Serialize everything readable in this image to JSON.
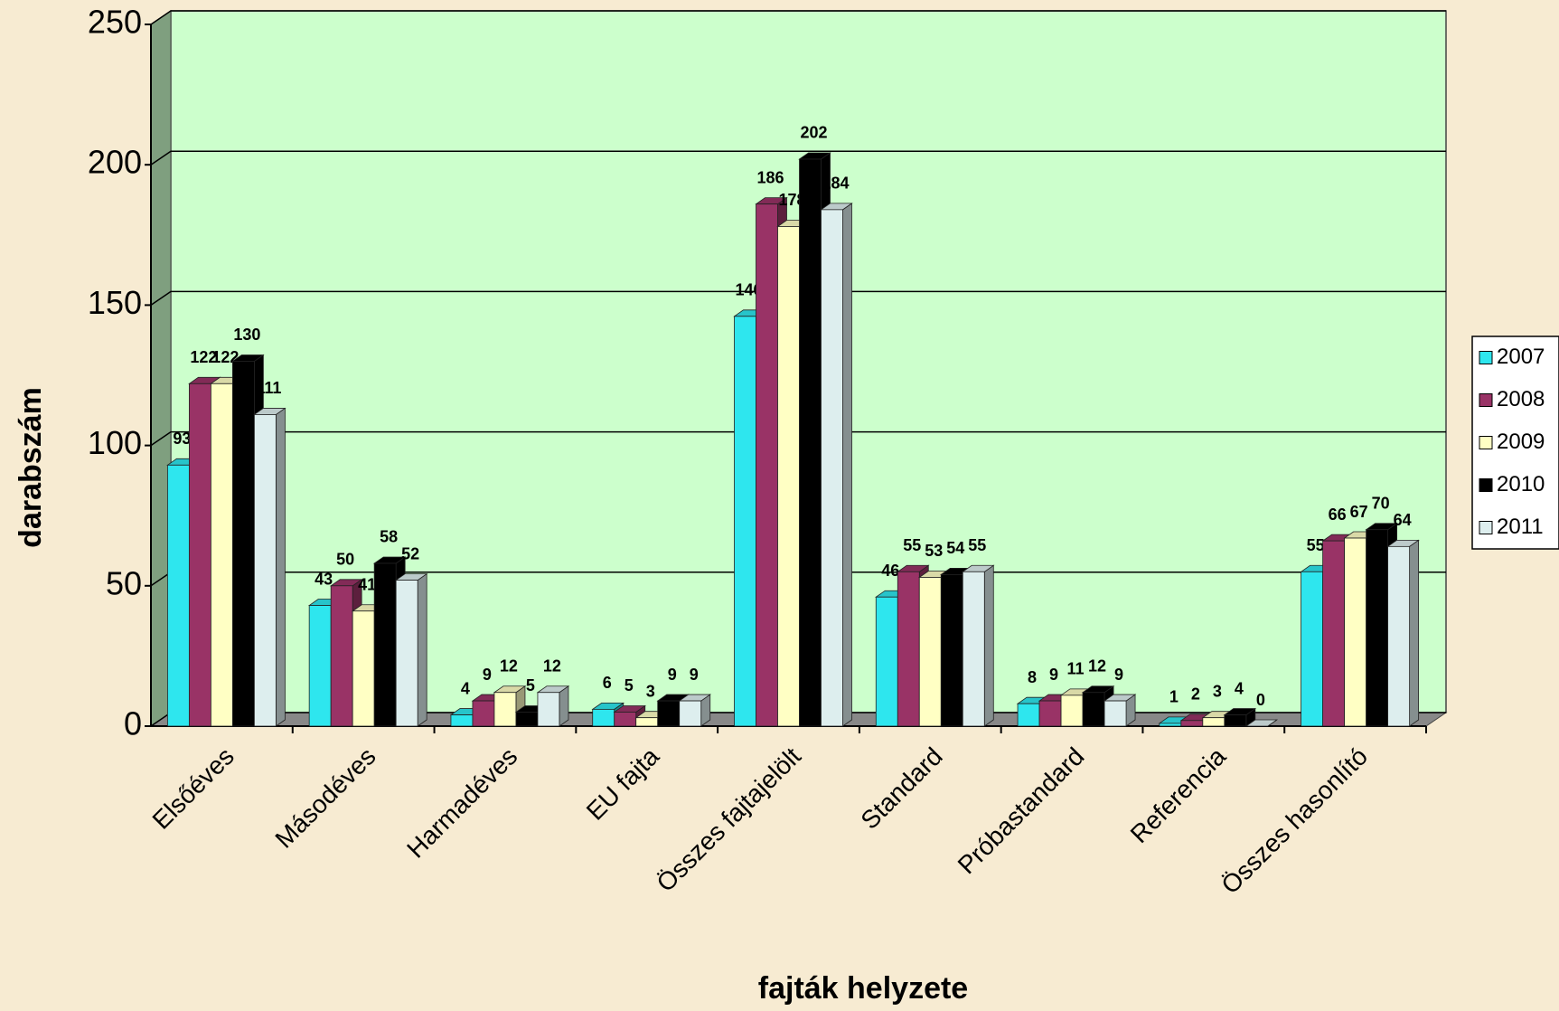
{
  "chart_data": {
    "type": "bar",
    "x_label": "fajták helyzete",
    "y_label": "darabszám",
    "categories": [
      "Elsőéves",
      "Másodéves",
      "Harmadéves",
      "EU fajta",
      "Összes fajtajelölt",
      "Standard",
      "Próbastandard",
      "Referencia",
      "Összes hasonlító"
    ],
    "series": [
      {
        "name": "2007",
        "color": "#2ee6ee",
        "values": [
          93,
          43,
          4,
          6,
          146,
          46,
          8,
          1,
          55
        ]
      },
      {
        "name": "2008",
        "color": "#993366",
        "values": [
          122,
          50,
          9,
          5,
          186,
          55,
          9,
          2,
          66
        ]
      },
      {
        "name": "2009",
        "color": "#ffffc4",
        "values": [
          122,
          41,
          12,
          3,
          178,
          53,
          11,
          3,
          67
        ]
      },
      {
        "name": "2010",
        "color": "#000000",
        "values": [
          130,
          58,
          5,
          9,
          202,
          54,
          12,
          4,
          70
        ]
      },
      {
        "name": "2011",
        "color": "#ddeeee",
        "values": [
          111,
          52,
          12,
          9,
          184,
          55,
          9,
          0,
          64
        ]
      }
    ],
    "ylim": [
      0,
      250
    ],
    "yticks": [
      0,
      50,
      100,
      150,
      200,
      250
    ],
    "grid": true,
    "legend": "right"
  }
}
